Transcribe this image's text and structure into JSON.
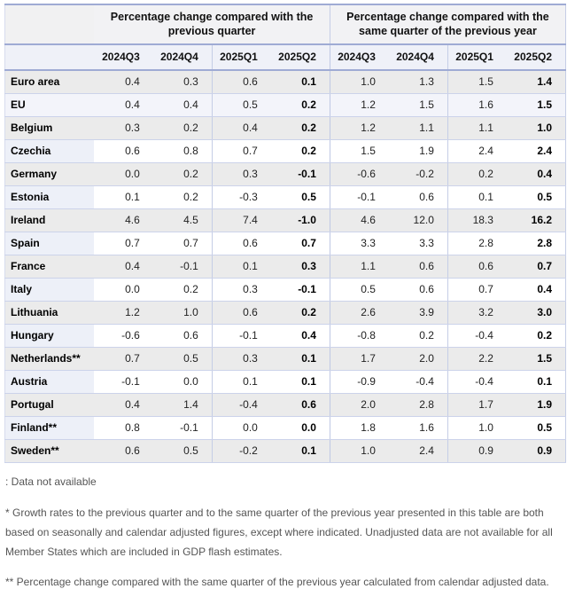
{
  "table": {
    "groups": [
      {
        "title": "Percentage change compared with the previous quarter"
      },
      {
        "title": "Percentage change compared with the same quarter of the previous year"
      }
    ],
    "quarters": [
      "2024Q3",
      "2024Q4",
      "2025Q1",
      "2025Q2"
    ],
    "rows": [
      {
        "name": "Euro area",
        "shade": "gray",
        "qoq": [
          "0.4",
          "0.3",
          "0.6",
          "0.1"
        ],
        "yoy": [
          "1.0",
          "1.3",
          "1.5",
          "1.4"
        ]
      },
      {
        "name": "EU",
        "shade": "tint",
        "qoq": [
          "0.4",
          "0.4",
          "0.5",
          "0.2"
        ],
        "yoy": [
          "1.2",
          "1.5",
          "1.6",
          "1.5"
        ]
      },
      {
        "name": "Belgium",
        "shade": "gray",
        "qoq": [
          "0.3",
          "0.2",
          "0.4",
          "0.2"
        ],
        "yoy": [
          "1.2",
          "1.1",
          "1.1",
          "1.0"
        ]
      },
      {
        "name": "Czechia",
        "shade": "white",
        "qoq": [
          "0.6",
          "0.8",
          "0.7",
          "0.2"
        ],
        "yoy": [
          "1.5",
          "1.9",
          "2.4",
          "2.4"
        ]
      },
      {
        "name": "Germany",
        "shade": "gray",
        "qoq": [
          "0.0",
          "0.2",
          "0.3",
          "-0.1"
        ],
        "yoy": [
          "-0.6",
          "-0.2",
          "0.2",
          "0.4"
        ]
      },
      {
        "name": "Estonia",
        "shade": "white",
        "qoq": [
          "0.1",
          "0.2",
          "-0.3",
          "0.5"
        ],
        "yoy": [
          "-0.1",
          "0.6",
          "0.1",
          "0.5"
        ]
      },
      {
        "name": "Ireland",
        "shade": "gray",
        "qoq": [
          "4.6",
          "4.5",
          "7.4",
          "-1.0"
        ],
        "yoy": [
          "4.6",
          "12.0",
          "18.3",
          "16.2"
        ]
      },
      {
        "name": "Spain",
        "shade": "white",
        "qoq": [
          "0.7",
          "0.7",
          "0.6",
          "0.7"
        ],
        "yoy": [
          "3.3",
          "3.3",
          "2.8",
          "2.8"
        ]
      },
      {
        "name": "France",
        "shade": "gray",
        "qoq": [
          "0.4",
          "-0.1",
          "0.1",
          "0.3"
        ],
        "yoy": [
          "1.1",
          "0.6",
          "0.6",
          "0.7"
        ]
      },
      {
        "name": "Italy",
        "shade": "white",
        "qoq": [
          "0.0",
          "0.2",
          "0.3",
          "-0.1"
        ],
        "yoy": [
          "0.5",
          "0.6",
          "0.7",
          "0.4"
        ]
      },
      {
        "name": "Lithuania",
        "shade": "gray",
        "qoq": [
          "1.2",
          "1.0",
          "0.6",
          "0.2"
        ],
        "yoy": [
          "2.6",
          "3.9",
          "3.2",
          "3.0"
        ]
      },
      {
        "name": "Hungary",
        "shade": "white",
        "qoq": [
          "-0.6",
          "0.6",
          "-0.1",
          "0.4"
        ],
        "yoy": [
          "-0.8",
          "0.2",
          "-0.4",
          "0.2"
        ]
      },
      {
        "name": "Netherlands**",
        "shade": "gray",
        "qoq": [
          "0.7",
          "0.5",
          "0.3",
          "0.1"
        ],
        "yoy": [
          "1.7",
          "2.0",
          "2.2",
          "1.5"
        ]
      },
      {
        "name": "Austria",
        "shade": "white",
        "qoq": [
          "-0.1",
          "0.0",
          "0.1",
          "0.1"
        ],
        "yoy": [
          "-0.9",
          "-0.4",
          "-0.4",
          "0.1"
        ]
      },
      {
        "name": "Portugal",
        "shade": "gray",
        "qoq": [
          "0.4",
          "1.4",
          "-0.4",
          "0.6"
        ],
        "yoy": [
          "2.0",
          "2.8",
          "1.7",
          "1.9"
        ]
      },
      {
        "name": "Finland**",
        "shade": "white",
        "qoq": [
          "0.8",
          "-0.1",
          "0.0",
          "0.0"
        ],
        "yoy": [
          "1.8",
          "1.6",
          "1.0",
          "0.5"
        ]
      },
      {
        "name": "Sweden**",
        "shade": "gray",
        "qoq": [
          "0.6",
          "0.5",
          "-0.2",
          "0.1"
        ],
        "yoy": [
          "1.0",
          "2.4",
          "0.9",
          "0.9"
        ]
      }
    ]
  },
  "notes": {
    "data_not_available": ": Data not available",
    "asterisk_note": "* Growth rates to the previous quarter and to the same quarter of the previous year presented in this table are both based on seasonally and calendar adjusted figures, except where indicated. Unadjusted data are not available for all Member States which are included in GDP flash estimates.",
    "double_asterisk_note": "** Percentage change compared with the same quarter of the previous year calculated from calendar adjusted data."
  },
  "colors": {
    "strong_border": "#9fabd4",
    "light_border": "#c5cde6",
    "gray_row": "#ebebeb",
    "tint_row": "#f3f4fa",
    "name_tint": "#edf0f8"
  }
}
